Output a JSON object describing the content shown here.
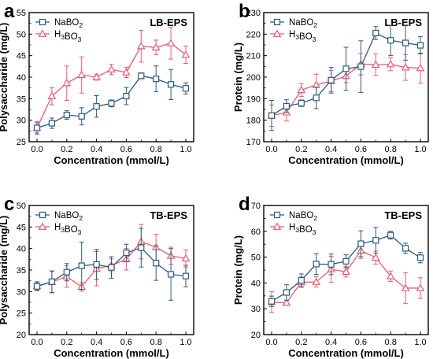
{
  "series_names": {
    "nabo2": "NaBO2",
    "h3bo3": "H3BO3"
  },
  "colors": {
    "nabo2": "#2d5a7b",
    "h3bo3": "#e85a73"
  },
  "chart_data": [
    {
      "type": "line",
      "panel": "a",
      "tag": "LB-EPS",
      "xlabel": "Concentration (mmol/L)",
      "ylabel": "Polysaccharide (mg/L)",
      "xlim": [
        0.0,
        1.0
      ],
      "ylim": [
        25,
        55
      ],
      "xticks": [
        "0.0",
        "0.2",
        "0.4",
        "0.6",
        "0.8",
        "1.0"
      ],
      "yticks": [
        "25",
        "30",
        "35",
        "40",
        "45",
        "50",
        "55"
      ],
      "legend": "top-left",
      "x": [
        0,
        0.1,
        0.2,
        0.3,
        0.4,
        0.5,
        0.6,
        0.7,
        0.8,
        0.9,
        1.0
      ],
      "series": [
        {
          "key": "nabo2",
          "values": [
            28.2,
            29.3,
            31.2,
            30.9,
            33.2,
            33.9,
            35.6,
            40.3,
            39.6,
            38.3,
            37.4
          ],
          "errors": [
            1.2,
            1.2,
            1.0,
            2.0,
            2.5,
            0.8,
            2.0,
            0.7,
            3.0,
            3.5,
            1.3
          ]
        },
        {
          "key": "h3bo3",
          "values": [
            28.2,
            35.6,
            38.6,
            40.5,
            40.0,
            41.8,
            41.1,
            47.2,
            46.9,
            47.9,
            45.2
          ],
          "errors": [
            1.5,
            2.0,
            4.0,
            4.2,
            0.7,
            1.2,
            1.2,
            3.7,
            1.7,
            3.7,
            2.0
          ]
        }
      ]
    },
    {
      "type": "line",
      "panel": "b",
      "tag": "LB-EPS",
      "xlabel": "Concentration (mmol/L)",
      "ylabel": "Protein (mg/L)",
      "xlim": [
        0.0,
        1.0
      ],
      "ylim": [
        170,
        230
      ],
      "xticks": [
        "0.0",
        "0.2",
        "0.4",
        "0.6",
        "0.8",
        "1.0"
      ],
      "yticks": [
        "170",
        "180",
        "190",
        "200",
        "210",
        "220",
        "230"
      ],
      "legend": "top-left",
      "x": [
        0,
        0.1,
        0.2,
        0.3,
        0.4,
        0.5,
        0.6,
        0.7,
        0.8,
        0.9,
        1.0
      ],
      "series": [
        {
          "key": "nabo2",
          "values": [
            182.2,
            186.5,
            187.9,
            190.4,
            198.6,
            203.9,
            204.9,
            220.5,
            217.1,
            215.9,
            214.8
          ],
          "errors": [
            7.0,
            3.0,
            1.5,
            5.0,
            6.0,
            10.0,
            12.0,
            3.0,
            7.0,
            8.0,
            4.0
          ]
        },
        {
          "key": "h3bo3",
          "values": [
            182.1,
            183.6,
            194.0,
            196.4,
            198.2,
            200.5,
            206.1,
            205.8,
            206.0,
            204.5,
            204.2
          ],
          "errors": [
            5.0,
            4.0,
            3.0,
            5.0,
            5.0,
            3.0,
            5.0,
            5.0,
            3.0,
            6.0,
            7.0
          ]
        }
      ]
    },
    {
      "type": "line",
      "panel": "c",
      "tag": "TB-EPS",
      "xlabel": "Concentration (mmol/L)",
      "ylabel": "Polysaccharide (mg/L)",
      "xlim": [
        0.0,
        1.0
      ],
      "ylim": [
        20,
        50
      ],
      "xticks": [
        "0.0",
        "0.2",
        "0.4",
        "0.6",
        "0.8",
        "1.0"
      ],
      "yticks": [
        "20",
        "25",
        "30",
        "35",
        "40",
        "45",
        "50"
      ],
      "legend": "top-left",
      "x": [
        0,
        0.1,
        0.2,
        0.3,
        0.4,
        0.5,
        0.6,
        0.7,
        0.8,
        0.9,
        1.0
      ],
      "series": [
        {
          "key": "nabo2",
          "values": [
            31.2,
            32.3,
            34.5,
            36.0,
            36.3,
            35.6,
            39.0,
            40.2,
            36.6,
            34.0,
            33.6
          ],
          "errors": [
            1.0,
            2.5,
            2.0,
            5.5,
            3.5,
            2.5,
            2.0,
            4.5,
            4.0,
            6.0,
            2.5
          ]
        },
        {
          "key": "h3bo3",
          "values": [
            31.3,
            32.2,
            33.5,
            31.1,
            35.3,
            36.1,
            37.5,
            41.6,
            40.3,
            38.3,
            37.7
          ],
          "errors": [
            1.0,
            2.5,
            2.5,
            1.0,
            4.0,
            1.5,
            2.5,
            4.0,
            3.0,
            2.0,
            2.0
          ]
        }
      ]
    },
    {
      "type": "line",
      "panel": "d",
      "tag": "TB-EPS",
      "xlabel": "Concentration (mmol/L)",
      "ylabel": "Protein (mg/L)",
      "xlim": [
        0.0,
        1.0
      ],
      "ylim": [
        20,
        70
      ],
      "xticks": [
        "0.0",
        "0.2",
        "0.4",
        "0.6",
        "0.8",
        "1.0"
      ],
      "yticks": [
        "20",
        "30",
        "40",
        "50",
        "60",
        "70"
      ],
      "legend": "top-left",
      "x": [
        0,
        0.1,
        0.2,
        0.3,
        0.4,
        0.5,
        0.6,
        0.7,
        0.8,
        0.9,
        1.0
      ],
      "series": [
        {
          "key": "nabo2",
          "values": [
            32.9,
            36.3,
            41.0,
            47.3,
            47.2,
            48.4,
            55.2,
            56.5,
            58.5,
            53.4,
            49.8
          ],
          "errors": [
            2.0,
            3.0,
            2.5,
            4.0,
            4.0,
            2.5,
            5.0,
            5.0,
            1.5,
            2.0,
            2.0
          ]
        },
        {
          "key": "h3bo3",
          "values": [
            32.6,
            32.3,
            40.3,
            40.4,
            45.3,
            44.3,
            52.5,
            49.8,
            42.6,
            38.0,
            38.0
          ],
          "errors": [
            4.0,
            1.0,
            2.0,
            2.0,
            5.0,
            2.0,
            3.0,
            2.5,
            2.0,
            6.0,
            4.0
          ]
        }
      ]
    }
  ]
}
